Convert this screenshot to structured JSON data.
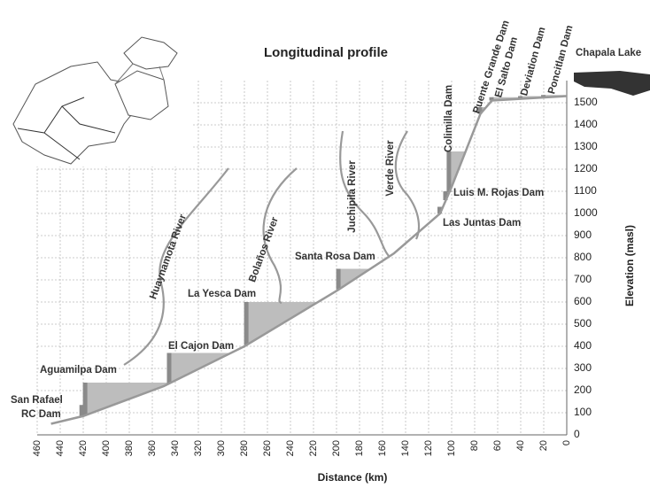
{
  "chart_data": {
    "type": "profile",
    "title": "Longitudinal profile",
    "xlabel": "Distance (km)",
    "ylabel": "Elevation (masl)",
    "xlim": [
      460,
      0
    ],
    "xticks": [
      460,
      440,
      420,
      400,
      380,
      360,
      340,
      320,
      300,
      280,
      260,
      240,
      220,
      200,
      180,
      160,
      140,
      120,
      100,
      80,
      60,
      40,
      20,
      0
    ],
    "ylim": [
      0,
      1600
    ],
    "yticks": [
      0,
      100,
      200,
      300,
      400,
      500,
      600,
      700,
      800,
      900,
      1000,
      1100,
      1200,
      1300,
      1400,
      1500
    ],
    "grid": true,
    "line_color": "#999999",
    "reservoir_color": "#bdbdbd",
    "dam_color": "#8a8a8a",
    "profile": {
      "x": [
        448,
        420,
        350,
        280,
        200,
        150,
        110,
        100,
        75,
        65,
        0
      ],
      "values": [
        50,
        85,
        220,
        400,
        650,
        820,
        1000,
        1120,
        1450,
        1510,
        1530
      ]
    },
    "dams": [
      {
        "name": "San Rafael RC Dam",
        "distance": 421,
        "elevation": 135
      },
      {
        "name": "Aguamilpa Dam",
        "distance": 418,
        "elevation": 236
      },
      {
        "name": "El Cajon Dam",
        "distance": 345,
        "elevation": 370
      },
      {
        "name": "La Yesca Dam",
        "distance": 278,
        "elevation": 600
      },
      {
        "name": "Santa Rosa Dam",
        "distance": 198,
        "elevation": 750
      },
      {
        "name": "Las Juntas Dam",
        "distance": 110,
        "elevation": 1030
      },
      {
        "name": "Luis M. Rojas Dam",
        "distance": 105,
        "elevation": 1100
      },
      {
        "name": "Colimilla Dam",
        "distance": 102,
        "elevation": 1280
      },
      {
        "name": "Puente Grande Dam",
        "distance": 75,
        "elevation": 1480
      },
      {
        "name": "El Salto Dam",
        "distance": 65,
        "elevation": 1525
      },
      {
        "name": "Deviation Dam",
        "distance": 40,
        "elevation": 1530
      },
      {
        "name": "Poncitlan Dam",
        "distance": 20,
        "elevation": 1535
      }
    ],
    "rivers": [
      "Huaynamota River",
      "Bolaños River",
      "Juchipila River",
      "Verde River"
    ],
    "lake": "Chapala Lake"
  }
}
